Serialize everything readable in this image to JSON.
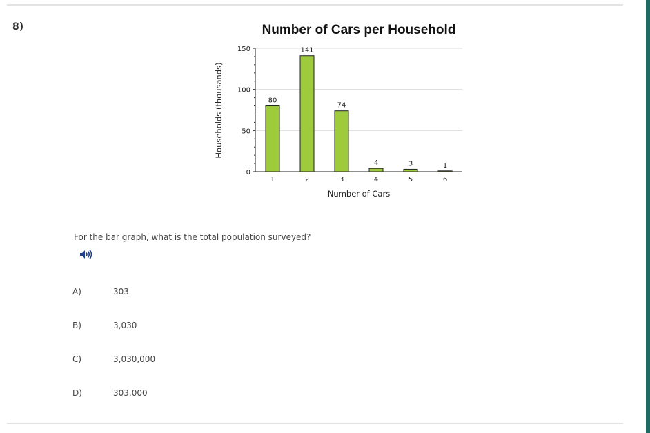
{
  "question_number": "8)",
  "question_text": "For the bar graph, what is the total population surveyed?",
  "audio_icon": "speaker-audio-icon",
  "choices": [
    {
      "letter": "A)",
      "value": "303"
    },
    {
      "letter": "B)",
      "value": "3,030"
    },
    {
      "letter": "C)",
      "value": "3,030,000"
    },
    {
      "letter": "D)",
      "value": "303,000"
    }
  ],
  "colors": {
    "bar": "#9dcb3c",
    "accent": "#1f6b62",
    "icon": "#1f3f8f"
  },
  "chart_data": {
    "type": "bar",
    "title": "Number of Cars per Household",
    "xlabel": "Number of Cars",
    "ylabel": "Households (thousands)",
    "categories": [
      "1",
      "2",
      "3",
      "4",
      "5",
      "6"
    ],
    "values": [
      80,
      141,
      74,
      4,
      3,
      1
    ],
    "ylim": [
      0,
      150
    ],
    "yticks": [
      0,
      50,
      100,
      150
    ],
    "grid": true
  }
}
